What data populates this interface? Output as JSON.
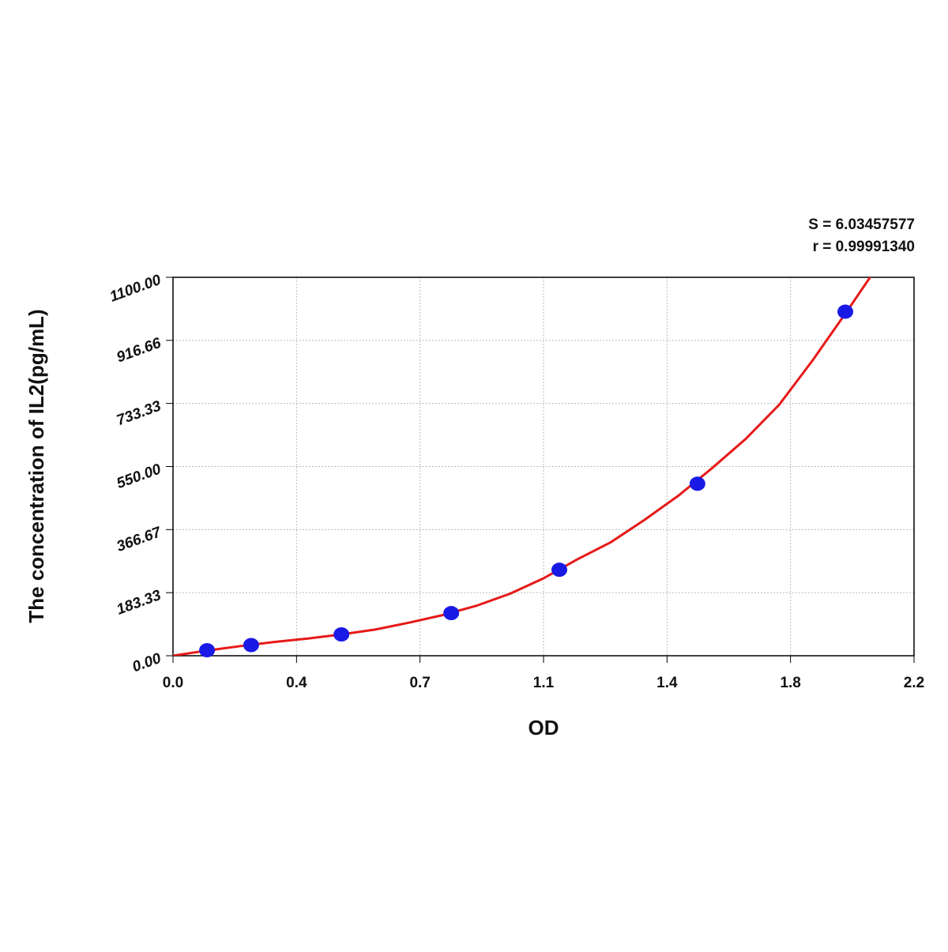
{
  "chart_data": {
    "type": "scatter",
    "annotations": [
      "S = 6.03457577",
      "r = 0.99991340"
    ],
    "x_label": "OD",
    "y_label": "The concentration of IL2(pg/mL)",
    "xlim": [
      0,
      2.2
    ],
    "ylim": [
      0,
      1100
    ],
    "xticks": [
      {
        "value": 0,
        "label": "0.0"
      },
      {
        "value": 0.3667,
        "label": "0.4"
      },
      {
        "value": 0.7333,
        "label": "0.7"
      },
      {
        "value": 1.1,
        "label": "1.1"
      },
      {
        "value": 1.4667,
        "label": "1.4"
      },
      {
        "value": 1.8333,
        "label": "1.8"
      },
      {
        "value": 2.2,
        "label": "2.2"
      }
    ],
    "yticks": [
      {
        "value": 0,
        "label": "0.00"
      },
      183.33,
      366.67,
      {
        "value": 550,
        "label": "550.00"
      },
      733.33,
      916.66,
      {
        "value": 1100,
        "label": "1100.00"
      }
    ],
    "grid": true,
    "points": {
      "color": "#1a1ae6",
      "x": [
        0.101,
        0.232,
        0.5,
        0.826,
        1.147,
        1.557,
        1.996
      ],
      "values": [
        16,
        31,
        62,
        124,
        250,
        500,
        1000
      ]
    },
    "fit": {
      "color": "#e61919",
      "x": [
        0,
        0.1,
        0.2,
        0.3,
        0.4,
        0.5,
        0.6,
        0.7,
        0.8,
        0.9,
        1.0,
        1.1,
        1.2,
        1.3,
        1.4,
        1.5,
        1.6,
        1.7,
        1.8,
        1.9,
        2.0,
        2.08
      ],
      "values": [
        0,
        15,
        28,
        40,
        50,
        62,
        76,
        96,
        118,
        145,
        180,
        225,
        280,
        330,
        395,
        465,
        545,
        630,
        730,
        860,
        1000,
        1115
      ]
    }
  }
}
